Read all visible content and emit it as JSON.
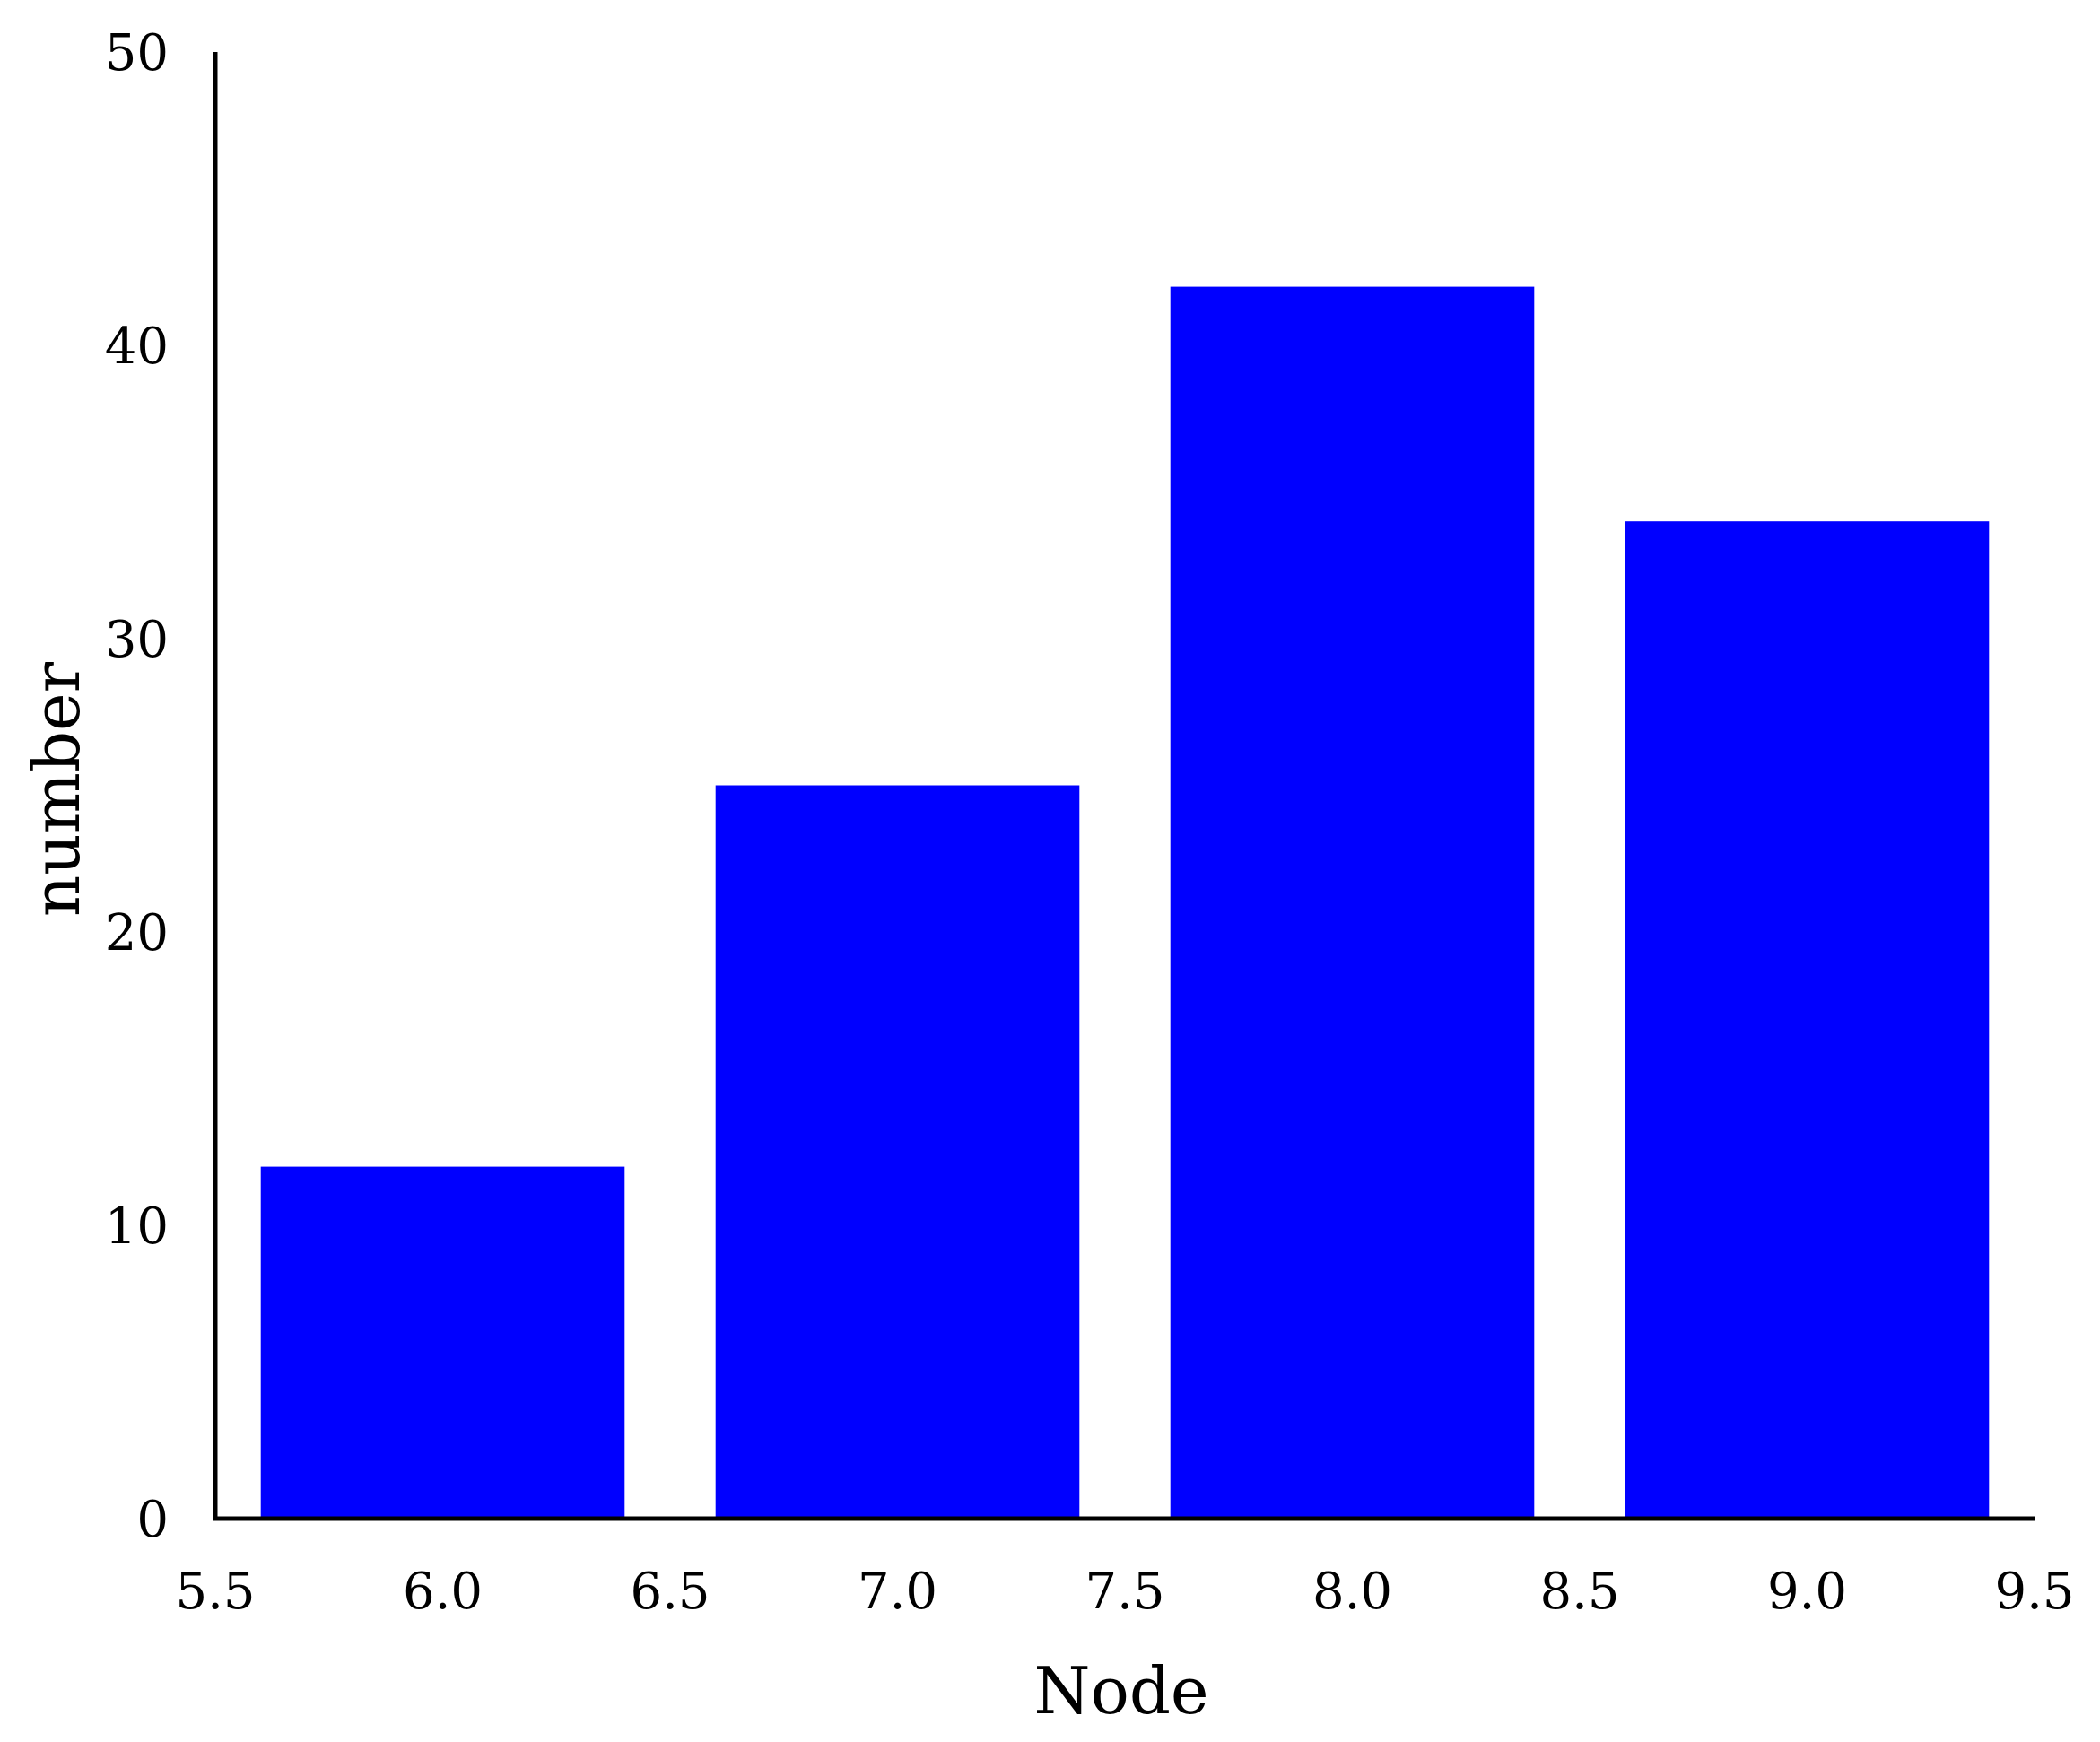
{
  "chart_data": {
    "type": "bar",
    "xlabel": "Node",
    "ylabel": "number",
    "x": [
      6.0,
      7.0,
      8.0,
      9.0
    ],
    "values": [
      12,
      25,
      42,
      34
    ],
    "bar_width": 0.8,
    "xlim": [
      5.5,
      9.5
    ],
    "ylim": [
      0,
      50
    ],
    "x_ticks": [
      5.5,
      6.0,
      6.5,
      7.0,
      7.5,
      8.0,
      8.5,
      9.0,
      9.5
    ],
    "x_tick_labels": [
      "5.5",
      "6.0",
      "6.5",
      "7.0",
      "7.5",
      "8.0",
      "8.5",
      "9.0",
      "9.5"
    ],
    "y_ticks": [
      0,
      10,
      20,
      30,
      40,
      50
    ],
    "y_tick_labels": [
      "0",
      "10",
      "20",
      "30",
      "40",
      "50"
    ],
    "grid": false,
    "bar_color": "#0000ff",
    "axis_color": "#000000"
  }
}
